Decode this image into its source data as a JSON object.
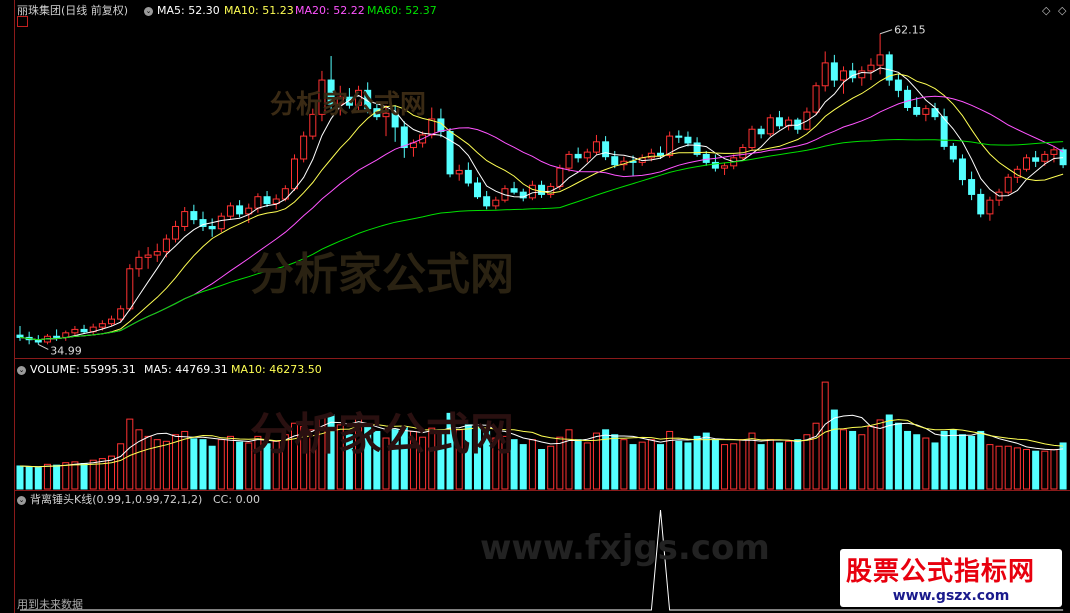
{
  "header": {
    "stock_title": "丽珠集团(日线 前复权)",
    "ma5": "MA5: 52.30",
    "ma10": "MA10: 51.23",
    "ma20": "MA20: 52.22",
    "ma60": "MA60: 52.37",
    "corner_marker": "◇"
  },
  "volume_header": {
    "volume": "VOLUME: 55995.31",
    "ma5": "MA5: 44769.31",
    "ma10": "MA10: 46273.50"
  },
  "indicator_header": {
    "name": "背离锤头K线(0.99,1,0.99,72,1,2)",
    "cc": "CC: 0.00"
  },
  "footer_text": "用到未来数据",
  "watermarks": [
    "分析家公式网",
    "分析家公式网",
    "分析家公式网",
    "www.fxjgs.com"
  ],
  "logo": {
    "line1": "股票公式指标网",
    "line2": "www.gszx.com"
  },
  "colors": {
    "up": "#ff3232",
    "down": "#54ffff",
    "ma5": "#ffffff",
    "ma10": "#ffff54",
    "ma20": "#ff54ff",
    "ma60": "#00e000",
    "grid": "#8a1a1a"
  },
  "chart_data": [
    {
      "type": "candlestick",
      "title": "丽珠集团(日线 前复权)",
      "annotations": [
        {
          "label": "62.15",
          "type": "max"
        },
        {
          "label": "34.99",
          "type": "min"
        }
      ],
      "ylim": [
        34.5,
        63
      ],
      "candles": [
        [
          35.8,
          36.6,
          35.3,
          35.6
        ],
        [
          35.6,
          36.1,
          35.0,
          35.4
        ],
        [
          35.4,
          35.8,
          34.99,
          35.2
        ],
        [
          35.2,
          35.9,
          35.0,
          35.7
        ],
        [
          35.7,
          36.3,
          35.3,
          35.6
        ],
        [
          35.6,
          36.2,
          35.3,
          36.0
        ],
        [
          36.0,
          36.6,
          35.7,
          36.3
        ],
        [
          36.3,
          36.7,
          35.9,
          36.1
        ],
        [
          36.1,
          36.8,
          35.8,
          36.5
        ],
        [
          36.5,
          37.1,
          36.2,
          36.8
        ],
        [
          36.8,
          37.5,
          36.6,
          37.2
        ],
        [
          37.2,
          38.4,
          37.0,
          38.1
        ],
        [
          38.1,
          42.0,
          37.9,
          41.6
        ],
        [
          41.6,
          43.2,
          40.9,
          42.6
        ],
        [
          42.6,
          43.5,
          41.6,
          42.8
        ],
        [
          42.8,
          43.8,
          42.2,
          43.1
        ],
        [
          43.1,
          44.6,
          42.6,
          44.2
        ],
        [
          44.2,
          45.8,
          43.9,
          45.3
        ],
        [
          45.3,
          47.0,
          44.9,
          46.6
        ],
        [
          46.6,
          47.2,
          45.5,
          45.9
        ],
        [
          45.9,
          46.6,
          44.9,
          45.3
        ],
        [
          45.3,
          46.0,
          44.4,
          45.1
        ],
        [
          45.1,
          46.5,
          44.8,
          46.2
        ],
        [
          46.2,
          47.4,
          45.9,
          47.1
        ],
        [
          47.1,
          47.6,
          46.1,
          46.4
        ],
        [
          46.4,
          47.3,
          45.6,
          46.9
        ],
        [
          46.9,
          48.2,
          46.5,
          47.9
        ],
        [
          47.9,
          48.4,
          47.0,
          47.3
        ],
        [
          47.3,
          48.1,
          46.8,
          47.7
        ],
        [
          47.7,
          48.9,
          47.5,
          48.6
        ],
        [
          48.6,
          51.6,
          48.4,
          51.2
        ],
        [
          51.2,
          53.6,
          50.9,
          53.2
        ],
        [
          53.2,
          55.6,
          52.9,
          55.1
        ],
        [
          55.1,
          58.9,
          54.5,
          58.1
        ],
        [
          58.1,
          60.2,
          55.4,
          56.0
        ],
        [
          56.0,
          57.6,
          55.0,
          56.6
        ],
        [
          56.6,
          57.4,
          55.6,
          55.9
        ],
        [
          55.9,
          57.6,
          55.3,
          57.2
        ],
        [
          57.2,
          57.9,
          55.2,
          55.6
        ],
        [
          55.6,
          56.2,
          54.6,
          54.9
        ],
        [
          54.9,
          55.9,
          53.2,
          55.2
        ],
        [
          55.2,
          55.9,
          52.7,
          54.0
        ],
        [
          54.0,
          54.5,
          51.3,
          52.2
        ],
        [
          52.2,
          52.9,
          51.4,
          52.6
        ],
        [
          52.6,
          53.6,
          52.2,
          53.3
        ],
        [
          53.3,
          55.7,
          53.0,
          54.7
        ],
        [
          54.7,
          55.6,
          53.1,
          53.6
        ],
        [
          53.6,
          53.9,
          49.6,
          49.9
        ],
        [
          49.9,
          50.7,
          49.3,
          50.2
        ],
        [
          50.2,
          50.9,
          48.8,
          49.1
        ],
        [
          49.1,
          49.6,
          47.7,
          47.9
        ],
        [
          47.9,
          48.4,
          46.8,
          47.1
        ],
        [
          47.1,
          47.9,
          46.8,
          47.6
        ],
        [
          47.6,
          48.9,
          47.4,
          48.6
        ],
        [
          48.6,
          49.2,
          48.1,
          48.3
        ],
        [
          48.3,
          48.6,
          47.5,
          47.8
        ],
        [
          47.8,
          49.3,
          47.6,
          48.9
        ],
        [
          48.9,
          49.3,
          47.8,
          48.1
        ],
        [
          48.1,
          49.1,
          47.8,
          48.8
        ],
        [
          48.8,
          50.7,
          48.5,
          50.4
        ],
        [
          50.4,
          51.9,
          50.1,
          51.6
        ],
        [
          51.6,
          52.2,
          50.9,
          51.3
        ],
        [
          51.3,
          52.1,
          50.9,
          51.8
        ],
        [
          51.8,
          53.3,
          51.6,
          52.7
        ],
        [
          52.7,
          53.2,
          51.1,
          51.4
        ],
        [
          51.4,
          51.9,
          50.4,
          50.7
        ],
        [
          50.7,
          51.4,
          50.2,
          51.0
        ],
        [
          51.0,
          51.5,
          49.7,
          50.9
        ],
        [
          50.9,
          51.6,
          50.6,
          51.3
        ],
        [
          51.3,
          52.1,
          51.0,
          51.7
        ],
        [
          51.7,
          52.3,
          51.2,
          51.5
        ],
        [
          51.5,
          53.6,
          51.3,
          53.2
        ],
        [
          53.2,
          53.7,
          52.6,
          53.1
        ],
        [
          53.1,
          53.6,
          52.3,
          52.6
        ],
        [
          52.6,
          53.1,
          51.4,
          51.6
        ],
        [
          51.6,
          51.9,
          50.6,
          50.9
        ],
        [
          50.9,
          51.6,
          50.1,
          50.4
        ],
        [
          50.4,
          50.9,
          49.8,
          50.6
        ],
        [
          50.6,
          51.6,
          50.3,
          51.3
        ],
        [
          51.3,
          52.5,
          51.1,
          52.2
        ],
        [
          52.2,
          54.1,
          52.0,
          53.8
        ],
        [
          53.8,
          54.1,
          53.0,
          53.4
        ],
        [
          53.4,
          55.1,
          53.2,
          54.8
        ],
        [
          54.8,
          55.4,
          53.8,
          54.1
        ],
        [
          54.1,
          54.9,
          53.7,
          54.6
        ],
        [
          54.6,
          54.8,
          53.4,
          53.8
        ],
        [
          53.8,
          55.7,
          53.7,
          55.3
        ],
        [
          55.3,
          57.9,
          55.1,
          57.6
        ],
        [
          57.6,
          60.6,
          57.1,
          59.6
        ],
        [
          59.6,
          60.3,
          57.5,
          58.1
        ],
        [
          58.1,
          59.3,
          56.9,
          58.9
        ],
        [
          58.9,
          59.6,
          57.9,
          58.3
        ],
        [
          58.3,
          59.3,
          57.6,
          58.9
        ],
        [
          58.9,
          60.0,
          58.1,
          59.4
        ],
        [
          59.4,
          62.15,
          58.6,
          60.3
        ],
        [
          60.3,
          60.6,
          57.6,
          58.1
        ],
        [
          58.1,
          58.6,
          56.6,
          57.2
        ],
        [
          57.2,
          57.6,
          55.4,
          55.7
        ],
        [
          55.7,
          56.6,
          54.9,
          55.1
        ],
        [
          55.1,
          55.9,
          54.5,
          55.6
        ],
        [
          55.6,
          56.1,
          54.6,
          54.9
        ],
        [
          54.9,
          55.6,
          52.0,
          52.3
        ],
        [
          52.3,
          52.6,
          50.9,
          51.2
        ],
        [
          51.2,
          51.6,
          48.9,
          49.4
        ],
        [
          49.4,
          50.1,
          47.6,
          48.1
        ],
        [
          48.1,
          48.6,
          46.1,
          46.4
        ],
        [
          46.4,
          47.9,
          45.8,
          47.6
        ],
        [
          47.6,
          48.6,
          47.1,
          48.3
        ],
        [
          48.3,
          49.9,
          48.1,
          49.6
        ],
        [
          49.6,
          50.6,
          49.1,
          50.3
        ],
        [
          50.3,
          51.6,
          50.1,
          51.3
        ],
        [
          51.3,
          51.9,
          50.5,
          51.0
        ],
        [
          51.0,
          51.9,
          50.6,
          51.6
        ],
        [
          51.6,
          52.3,
          50.9,
          52.0
        ],
        [
          52.0,
          52.2,
          50.4,
          50.7
        ]
      ],
      "ma5_last": 52.3,
      "ma10_last": 51.23,
      "ma20_last": 52.22,
      "ma60_last": 52.37
    },
    {
      "type": "bar",
      "title": "VOLUME",
      "volume_last": 55995.31,
      "ma5_last": 44769.31,
      "ma10_last": 46273.5,
      "ylim": [
        0,
        135000
      ],
      "volumes": [
        28000,
        27000,
        26000,
        30000,
        29000,
        32000,
        33000,
        31000,
        35000,
        37000,
        40000,
        55000,
        85000,
        72000,
        64000,
        60000,
        58000,
        66000,
        70000,
        61000,
        60000,
        52000,
        60000,
        64000,
        57000,
        56000,
        64000,
        55000,
        58000,
        66000,
        80000,
        76000,
        72000,
        88000,
        90000,
        78000,
        66000,
        88000,
        76000,
        70000,
        62000,
        72000,
        76000,
        70000,
        63000,
        74000,
        72000,
        92000,
        72000,
        78000,
        76000,
        70000,
        62000,
        64000,
        60000,
        54000,
        60000,
        48000,
        52000,
        63000,
        72000,
        60000,
        56000,
        68000,
        72000,
        66000,
        60000,
        54000,
        57000,
        60000,
        54000,
        70000,
        58000,
        56000,
        64000,
        68000,
        60000,
        54000,
        55000,
        60000,
        68000,
        54000,
        60000,
        56000,
        58000,
        60000,
        66000,
        80000,
        130000,
        96000,
        72000,
        70000,
        66000,
        76000,
        84000,
        90000,
        80000,
        70000,
        66000,
        62000,
        56000,
        70000,
        72000,
        66000,
        64000,
        70000,
        54000,
        52000,
        52000,
        50000,
        48000,
        46000,
        46000,
        48000,
        56000
      ]
    },
    {
      "type": "line",
      "title": "背离锤头K线(0.99,1,0.99,72,1,2)",
      "cc_last": 0.0,
      "series": [
        {
          "name": "CC",
          "signal_index": 70,
          "signal_value": 1,
          "other_values": 0
        }
      ]
    }
  ]
}
